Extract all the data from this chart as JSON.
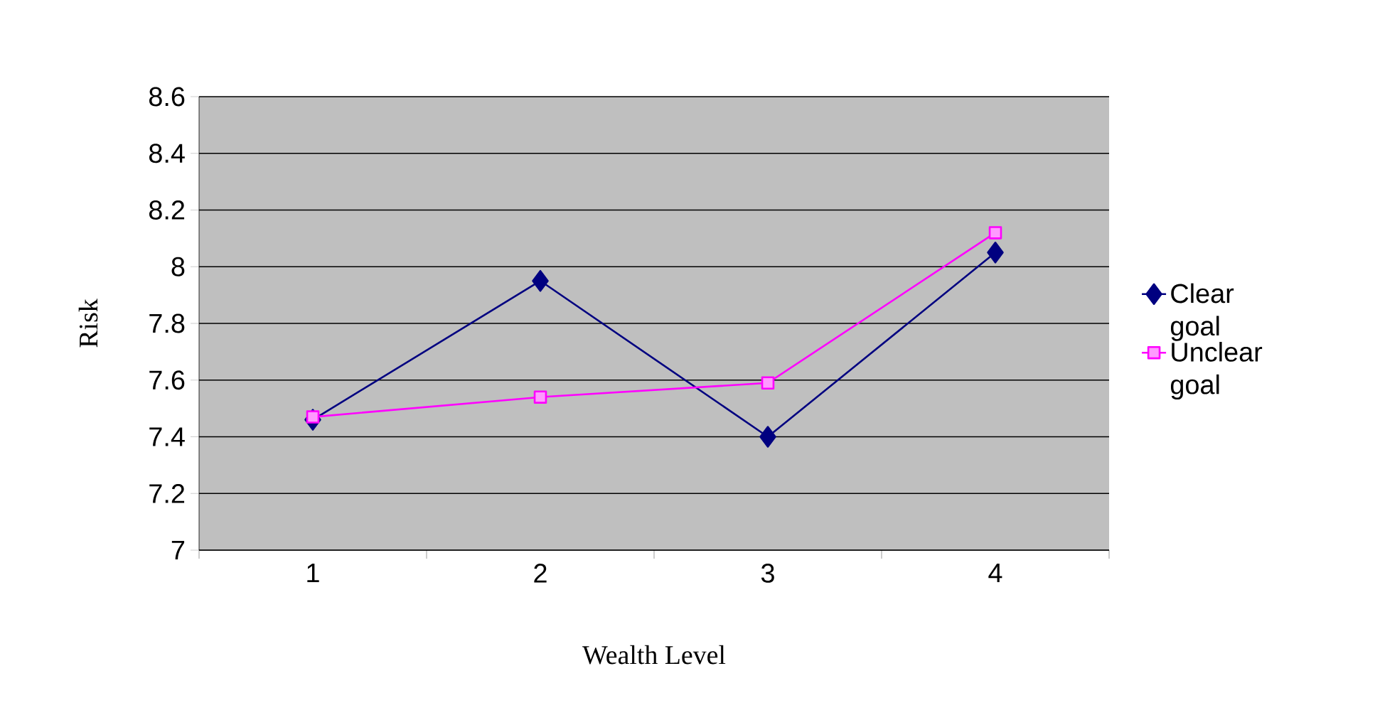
{
  "chart_data": {
    "type": "line",
    "xlabel": "Wealth Level",
    "ylabel": "Risk",
    "categories": [
      "1",
      "2",
      "3",
      "4"
    ],
    "series": [
      {
        "name": "Clear goal",
        "color": "#000080",
        "marker": "diamond",
        "values": [
          7.46,
          7.95,
          7.4,
          8.05
        ]
      },
      {
        "name": "Unclear goal",
        "color": "#ff00ff",
        "marker": "square",
        "values": [
          7.47,
          7.54,
          7.59,
          8.12
        ]
      }
    ],
    "ylim": [
      7,
      8.6
    ],
    "yticks": [
      7,
      7.2,
      7.4,
      7.6,
      7.8,
      8,
      8.2,
      8.4,
      8.6
    ],
    "grid": "y",
    "legend": "right"
  }
}
